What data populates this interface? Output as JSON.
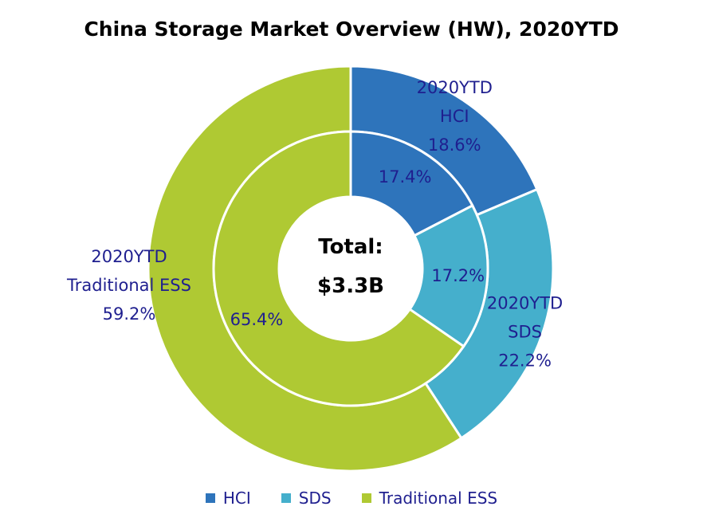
{
  "chart_data": {
    "type": "donut",
    "title": "China Storage Market Overview (HW), 2020YTD",
    "center_label": [
      "Total:",
      "$3.3B"
    ],
    "categories": [
      "HCI",
      "SDS",
      "Traditional ESS"
    ],
    "colors": [
      "#2e74bb",
      "#45afcc",
      "#afc933"
    ],
    "series": [
      {
        "ring": "outer",
        "label_prefix": "2020YTD",
        "values": [
          18.6,
          22.2,
          59.2
        ],
        "labels": [
          "18.6%",
          "22.2%",
          "59.2%"
        ]
      },
      {
        "ring": "inner",
        "values": [
          17.4,
          17.2,
          65.4
        ],
        "labels": [
          "17.4%",
          "17.2%",
          "65.4%"
        ]
      }
    ],
    "legend": {
      "position": "bottom",
      "items": [
        "HCI",
        "SDS",
        "Traditional ESS"
      ]
    }
  }
}
